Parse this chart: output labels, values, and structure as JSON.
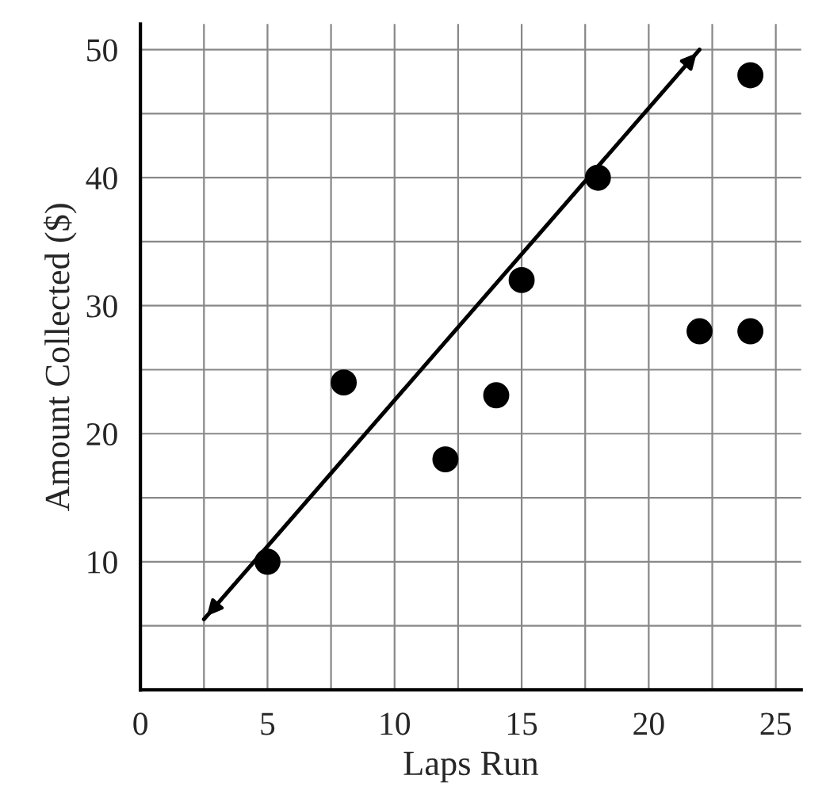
{
  "chart_data": {
    "type": "scatter",
    "xlabel": "Laps Run",
    "ylabel": "Amount Collected ($)",
    "xlim": [
      0,
      26
    ],
    "ylim": [
      0,
      52
    ],
    "xticks": [
      0,
      {
        "value": 2.5,
        "label": null
      },
      5,
      {
        "value": 7.5,
        "label": null
      },
      10,
      {
        "value": 12.5,
        "label": null
      },
      15,
      {
        "value": 17.5,
        "label": null
      },
      20,
      {
        "value": 22.5,
        "label": null
      },
      25
    ],
    "yticks": [
      {
        "value": 5,
        "label": null
      },
      10,
      {
        "value": 15,
        "label": null
      },
      20,
      {
        "value": 25,
        "label": null
      },
      30,
      {
        "value": 35,
        "label": null
      },
      40,
      {
        "value": 45,
        "label": null
      },
      50
    ],
    "grid": true,
    "series": [
      {
        "marker": "circle",
        "color": "#000000",
        "x": [
          5,
          8,
          12,
          14,
          15,
          18,
          22,
          24,
          24
        ],
        "values": [
          10,
          24,
          18,
          23,
          32,
          40,
          28,
          28,
          48
        ]
      },
      {
        "type": "line",
        "marker": "none",
        "color": "#000000",
        "x": [
          2.5,
          22
        ],
        "values": [
          5.5,
          50
        ]
      }
    ]
  }
}
